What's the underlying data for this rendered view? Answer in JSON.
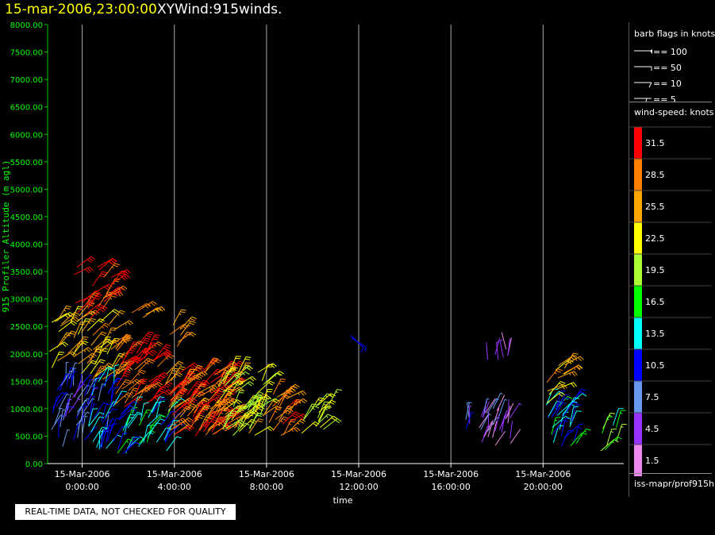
{
  "header": {
    "date_label": "15-mar-2006,23:00:00",
    "plot_name": "XYWind:915winds."
  },
  "qc_notice": "REAL-TIME DATA, NOT CHECKED FOR QUALITY",
  "legend": {
    "barb_title": "barb flags in knots",
    "barb_entries": [
      "== 100",
      "== 50",
      "== 10",
      "== 5"
    ],
    "speed_title": "wind-speed: knots",
    "speed_bins": [
      {
        "label": "31.5",
        "color": "#ff0000"
      },
      {
        "label": "28.5",
        "color": "#ff8000"
      },
      {
        "label": "25.5",
        "color": "#ffa500"
      },
      {
        "label": "22.5",
        "color": "#ffff00"
      },
      {
        "label": "19.5",
        "color": "#aaff33"
      },
      {
        "label": "16.5",
        "color": "#00ff00"
      },
      {
        "label": "13.5",
        "color": "#00ffff"
      },
      {
        "label": "10.5",
        "color": "#0000ff"
      },
      {
        "label": "7.5",
        "color": "#6699ee"
      },
      {
        "label": "4.5",
        "color": "#9933ff"
      },
      {
        "label": "1.5",
        "color": "#ee88ee"
      }
    ],
    "source": "iss-mapr/prof915h"
  },
  "chart_data": {
    "type": "scatter",
    "ylabel": "915 Profiler Altitude (m agl)",
    "xlabel": "time",
    "ylim": [
      0,
      8000
    ],
    "xlim_hours": [
      -1.5,
      23.5
    ],
    "y_ticks": [
      "0.00",
      "500.00",
      "1000.00",
      "1500.00",
      "2000.00",
      "2500.00",
      "3000.00",
      "3500.00",
      "4000.00",
      "4500.00",
      "5000.00",
      "5500.00",
      "6000.00",
      "6500.00",
      "7000.00",
      "7500.00",
      "8000.00"
    ],
    "x_ticks": [
      {
        "hour": 0,
        "date": "15-Mar-2006",
        "time": "0:00:00"
      },
      {
        "hour": 4,
        "date": "15-Mar-2006",
        "time": "4:00:00"
      },
      {
        "hour": 8,
        "date": "15-Mar-2006",
        "time": "8:00:00"
      },
      {
        "hour": 12,
        "date": "15-Mar-2006",
        "time": "12:00:00"
      },
      {
        "hour": 16,
        "date": "15-Mar-2006",
        "time": "16:00:00"
      },
      {
        "hour": 20,
        "date": "15-Mar-2006",
        "time": "20:00:00"
      }
    ],
    "grid": "vertical at major x ticks",
    "clusters": [
      {
        "hour_start": -1.5,
        "hour_end": 0.4,
        "alt_min": 300,
        "alt_max": 1600,
        "speed": 8,
        "direction_deg": 200,
        "n": 40
      },
      {
        "hour_start": -1.5,
        "hour_end": 0.4,
        "alt_min": 1600,
        "alt_max": 2700,
        "speed": 24,
        "direction_deg": 220,
        "n": 25
      },
      {
        "hour_start": -0.4,
        "hour_end": 1.3,
        "alt_min": 2600,
        "alt_max": 3600,
        "speed": 31,
        "direction_deg": 230,
        "n": 25
      },
      {
        "hour_start": 0.2,
        "hour_end": 1.5,
        "alt_min": 1500,
        "alt_max": 2700,
        "speed": 26,
        "direction_deg": 220,
        "n": 25
      },
      {
        "hour_start": 0.0,
        "hour_end": 1.4,
        "alt_min": 250,
        "alt_max": 1500,
        "speed": 11,
        "direction_deg": 200,
        "n": 40
      },
      {
        "hour_start": 1.4,
        "hour_end": 3.3,
        "alt_min": 1000,
        "alt_max": 2200,
        "speed": 30,
        "direction_deg": 225,
        "n": 45
      },
      {
        "hour_start": 1.5,
        "hour_end": 3.8,
        "alt_min": 150,
        "alt_max": 1000,
        "speed": 13,
        "direction_deg": 210,
        "n": 40
      },
      {
        "hour_start": 2.1,
        "hour_end": 2.9,
        "alt_min": 2650,
        "alt_max": 2800,
        "speed": 28,
        "direction_deg": 240,
        "n": 4
      },
      {
        "hour_start": 3.8,
        "hour_end": 4.5,
        "alt_min": 2100,
        "alt_max": 2550,
        "speed": 26,
        "direction_deg": 220,
        "n": 6
      },
      {
        "hour_start": 3.5,
        "hour_end": 6.4,
        "alt_min": 500,
        "alt_max": 1700,
        "speed": 29,
        "direction_deg": 225,
        "n": 110
      },
      {
        "hour_start": 5.8,
        "hour_end": 8.0,
        "alt_min": 500,
        "alt_max": 1700,
        "speed": 22,
        "direction_deg": 220,
        "n": 60
      },
      {
        "hour_start": 8.0,
        "hour_end": 9.0,
        "alt_min": 500,
        "alt_max": 1300,
        "speed": 28,
        "direction_deg": 225,
        "n": 20
      },
      {
        "hour_start": 9.5,
        "hour_end": 10.8,
        "alt_min": 500,
        "alt_max": 1100,
        "speed": 21,
        "direction_deg": 215,
        "n": 14
      },
      {
        "hour_start": 11.6,
        "hour_end": 11.9,
        "alt_min": 2200,
        "alt_max": 2400,
        "speed": 10,
        "direction_deg": 300,
        "n": 2
      },
      {
        "hour_start": 16.6,
        "hour_end": 17.0,
        "alt_min": 500,
        "alt_max": 900,
        "speed": 7,
        "direction_deg": 190,
        "n": 4
      },
      {
        "hour_start": 17.2,
        "hour_end": 18.6,
        "alt_min": 300,
        "alt_max": 1000,
        "speed": 4,
        "direction_deg": 200,
        "n": 28
      },
      {
        "hour_start": 17.4,
        "hour_end": 18.6,
        "alt_min": 1700,
        "alt_max": 2100,
        "speed": 4,
        "direction_deg": 180,
        "n": 7
      },
      {
        "hour_start": 20.0,
        "hour_end": 21.5,
        "alt_min": 300,
        "alt_max": 1200,
        "speed": 13,
        "direction_deg": 210,
        "n": 30
      },
      {
        "hour_start": 20.1,
        "hour_end": 21.2,
        "alt_min": 1100,
        "alt_max": 1800,
        "speed": 25,
        "direction_deg": 230,
        "n": 12
      },
      {
        "hour_start": 22.5,
        "hour_end": 23.3,
        "alt_min": 200,
        "alt_max": 700,
        "speed": 17,
        "direction_deg": 210,
        "n": 8
      }
    ]
  }
}
